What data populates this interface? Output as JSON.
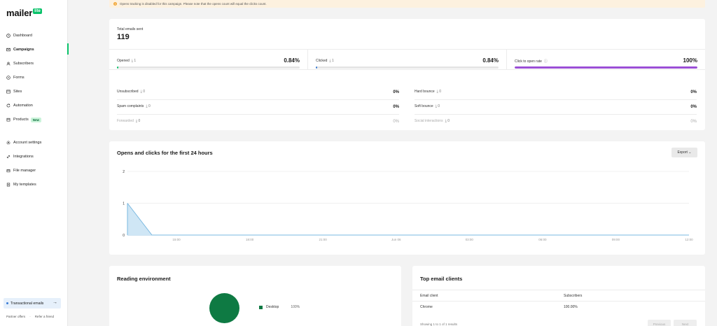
{
  "brand": {
    "name": "mailer",
    "badge": "lite",
    "accent": "#09c269"
  },
  "sidebar": {
    "items": [
      {
        "label": "Dashboard",
        "icon": "clock-icon"
      },
      {
        "label": "Campaigns",
        "icon": "mail-icon",
        "active": true
      },
      {
        "label": "Subscribers",
        "icon": "user-icon"
      },
      {
        "label": "Forms",
        "icon": "form-icon"
      },
      {
        "label": "Sites",
        "icon": "browser-icon"
      },
      {
        "label": "Automation",
        "icon": "refresh-icon"
      },
      {
        "label": "Products",
        "icon": "box-icon",
        "badge": "New"
      }
    ],
    "secondary": [
      {
        "label": "Account settings",
        "icon": "gear-icon"
      },
      {
        "label": "Integrations",
        "icon": "link-icon"
      },
      {
        "label": "File manager",
        "icon": "file-icon"
      },
      {
        "label": "My templates",
        "icon": "template-icon"
      }
    ],
    "transactional": "Transactional emails",
    "footer": {
      "partner": "Partner offers",
      "refer": "Refer a friend"
    }
  },
  "banner": {
    "text": "Opens tracking is disabled for this campaign. Please note that the opens count will equal the clicks count."
  },
  "stats": {
    "total_label": "Total emails sent",
    "total_value": "119",
    "opened": {
      "label": "Opened",
      "count": "1",
      "pct": "0.84%",
      "fill": 0.0084,
      "color": "#09c269"
    },
    "clicked": {
      "label": "Clicked",
      "count": "1",
      "pct": "0.84%",
      "fill": 0.0084,
      "color": "#3a7bd5"
    },
    "ctor": {
      "label": "Click to open rate",
      "pct": "100%",
      "fill": 1.0,
      "color": "#9b4fd6"
    },
    "left": [
      {
        "label": "Unsubscribed",
        "count": "0",
        "value": "0%"
      },
      {
        "label": "Spam complaints",
        "count": "0",
        "value": "0%"
      },
      {
        "label": "Forwarded",
        "count": "0",
        "value": "0%",
        "muted": true
      }
    ],
    "right": [
      {
        "label": "Hard bounce",
        "count": "0",
        "value": "0%"
      },
      {
        "label": "Soft bounce",
        "count": "0",
        "value": "0%"
      },
      {
        "label": "Social interactions",
        "count": "0",
        "value": "0%",
        "muted": true
      }
    ]
  },
  "opens_chart": {
    "title": "Opens and clicks for the first 24 hours",
    "export_label": "Export"
  },
  "chart_data": {
    "type": "area",
    "title": "Opens and clicks for the first 24 hours",
    "x_ticks": [
      "15:00",
      "18:00",
      "21:00",
      "Jun 06",
      "03:00",
      "06:00",
      "09:00",
      "12:00"
    ],
    "y_ticks": [
      0,
      1,
      2
    ],
    "ylim": [
      0,
      2
    ],
    "series": [
      {
        "values": [
          1,
          0,
          0,
          0,
          0,
          0,
          0,
          0,
          0,
          0,
          0,
          0,
          0,
          0,
          0,
          0,
          0,
          0,
          0,
          0,
          0,
          0,
          0,
          0
        ],
        "color": "#7ab8e0"
      }
    ]
  },
  "reading": {
    "title": "Reading environment",
    "legend": [
      {
        "label": "Desktop",
        "value": "100%",
        "color": "#0e7a43"
      }
    ]
  },
  "clients": {
    "title": "Top email clients",
    "headers": {
      "client": "Email client",
      "subscribers": "Subscribers"
    },
    "rows": [
      {
        "client": "Chrome",
        "subscribers": "100.00%"
      }
    ],
    "showing": "Showing 1 to 1 of 1 results",
    "prev": "Previous",
    "next": "Next"
  }
}
